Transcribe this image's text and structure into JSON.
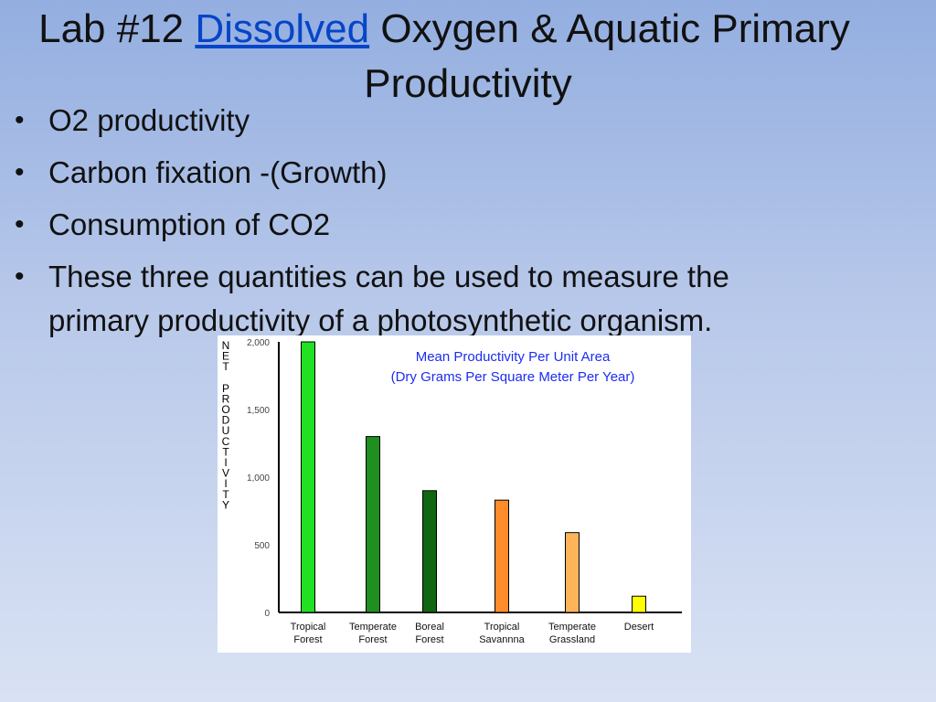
{
  "title": {
    "prefix": "Lab #12 ",
    "link": "Dissolved",
    "suffix": " Oxygen & Aquatic Primary",
    "line2": "Productivity"
  },
  "bullets": [
    "O2 productivity",
    "Carbon fixation -(Growth)",
    "Consumption of CO2",
    "These three quantities can be used to measure the primary productivity of a photosynthetic organism."
  ],
  "chart_data": {
    "type": "bar",
    "title_lines": [
      "Mean Productivity Per Unit Area",
      "(Dry Grams Per Square Meter Per Year)"
    ],
    "ylabel": "NET PRODUCTIVITY",
    "ylim": [
      0,
      2000
    ],
    "yticks": [
      0,
      500,
      1000,
      1500,
      2000
    ],
    "ytick_labels": [
      "0",
      "500",
      "1,000",
      "1,500",
      "2,000"
    ],
    "categories": [
      [
        "Tropical",
        "Forest"
      ],
      [
        "Temperate",
        "Forest"
      ],
      [
        "Boreal",
        "Forest"
      ],
      [
        "Tropical",
        "Savannna"
      ],
      [
        "Temperate",
        "Grassland"
      ],
      [
        "Desert"
      ]
    ],
    "values": [
      2000,
      1300,
      900,
      830,
      590,
      120
    ],
    "colors": [
      "#22e022",
      "#1f8f1f",
      "#116611",
      "#ff8c2a",
      "#ffb45a",
      "#ffff00"
    ],
    "grid": false,
    "legend": "none"
  }
}
